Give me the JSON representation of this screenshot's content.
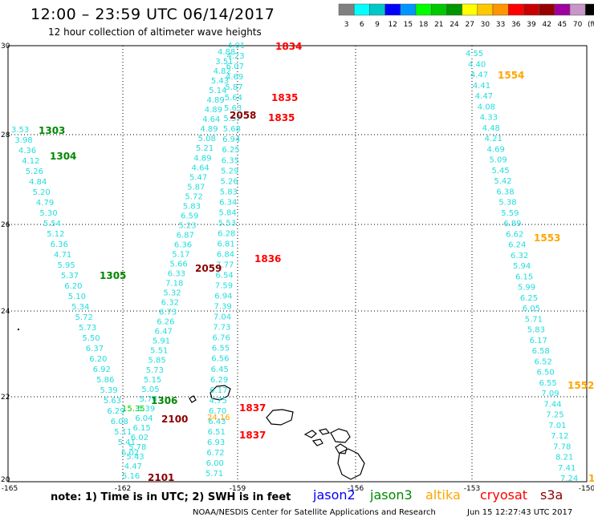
{
  "title": "12:00 – 23:59 UTC 06/14/2017",
  "subtitle": "12 hour collection of altimeter wave heights",
  "legend": {
    "colors": [
      "#808080",
      "#00ffff",
      "#00c8c8",
      "#0000ff",
      "#0096ff",
      "#00ff00",
      "#00c800",
      "#009600",
      "#ffff00",
      "#ffc800",
      "#ff9600",
      "#ff0000",
      "#c80000",
      "#960000",
      "#a000a0",
      "#c896c8",
      "#000000"
    ],
    "labels": [
      "3",
      "6",
      "9",
      "12",
      "15",
      "18",
      "21",
      "24",
      "27",
      "30",
      "33",
      "36",
      "39",
      "42",
      "45",
      "70",
      "(ft)"
    ]
  },
  "axes": {
    "x_labels": [
      "-165",
      "-162",
      "-159",
      "-156",
      "-153",
      "-150"
    ],
    "y_labels": [
      "30",
      "28",
      "26",
      "24",
      "22",
      "20"
    ]
  },
  "tracks": [
    {
      "color": "#22dddd",
      "values": [
        "3.53",
        "3.98",
        "4.36",
        "4.12",
        "5.26",
        "4.84",
        "5.20",
        "4.79",
        "5.30",
        "5.54",
        "5.12",
        "6.36",
        "4.71",
        "5.95",
        "5.37",
        "6.20",
        "5.10",
        "5.34",
        "5.72",
        "5.73",
        "5.50",
        "6.37",
        "6.20",
        "6.92",
        "5.86",
        "5.39",
        "5.63",
        "6.29",
        "6.08",
        "5.11",
        "5.41",
        "6.02"
      ]
    },
    {
      "color": "#22dddd",
      "values": [
        "4.88",
        "3.51",
        "4.82",
        "5.43",
        "5.14",
        "4.89",
        "4.89",
        "4.64",
        "4.89",
        "5.08",
        "5.21",
        "4.89",
        "4.64",
        "5.47",
        "5.87",
        "5.72",
        "5.83",
        "6.59",
        "5.23",
        "6.87",
        "6.36",
        "5.17",
        "5.66",
        "6.33",
        "7.18",
        "5.32",
        "6.32",
        "6.73",
        "6.26",
        "6.47",
        "5.91",
        "5.51",
        "5.85",
        "5.73",
        "5.15",
        "5.05",
        "5.76",
        "5.39",
        "6.04",
        "6.15",
        "6.02",
        "5.78",
        "5.43",
        "4.47",
        "5.16"
      ]
    },
    {
      "color": "#22dddd",
      "values": [
        "4.01",
        "4.23",
        "6.07",
        "4.69",
        "5.87",
        "5.64",
        "5.63",
        "5.57",
        "5.68",
        "6.94",
        "6.25",
        "6.35",
        "5.29",
        "5.26",
        "5.83",
        "6.34",
        "5.84",
        "5.53",
        "6.28",
        "6.81",
        "6.84",
        "7.77",
        "6.54",
        "7.59",
        "6.94",
        "7.39",
        "7.04",
        "7.73",
        "6.76",
        "6.55",
        "6.56",
        "6.45",
        "6.29",
        "6.17",
        "4.75",
        "6.70",
        "6.43",
        "6.51",
        "6.93",
        "6.72",
        "6.00",
        "5.71"
      ]
    },
    {
      "color": "#22dddd",
      "values": [
        "4.55",
        "4.40",
        "4.47",
        "4.41",
        "4.47",
        "4.08",
        "4.33",
        "4.48",
        "4.21",
        "4.69",
        "5.09",
        "5.45",
        "5.42",
        "6.38",
        "5.38",
        "5.59",
        "6.89",
        "6.62",
        "6.24",
        "6.32",
        "5.94",
        "6.15",
        "5.99",
        "6.25",
        "6.05",
        "5.71",
        "5.83",
        "6.17",
        "6.58",
        "6.52",
        "6.50",
        "6.55",
        "7.09",
        "7.44",
        "7.25",
        "7.01",
        "7.12",
        "7.78",
        "8.21",
        "7.41",
        "7.24"
      ]
    }
  ],
  "special_values": [
    {
      "text": "15.35",
      "color": "#00cc00"
    },
    {
      "text": "24.16",
      "color": "#ffa500"
    }
  ],
  "time_labels": [
    {
      "text": "1303",
      "color": "#008800"
    },
    {
      "text": "1304",
      "color": "#008800"
    },
    {
      "text": "1305",
      "color": "#008800"
    },
    {
      "text": "1306",
      "color": "#008800"
    },
    {
      "text": "2058",
      "color": "#8b0000"
    },
    {
      "text": "2059",
      "color": "#8b0000"
    },
    {
      "text": "2100",
      "color": "#8b0000"
    },
    {
      "text": "2101",
      "color": "#8b0000"
    },
    {
      "text": "1834",
      "color": "#ff0000"
    },
    {
      "text": "1835",
      "color": "#ff0000"
    },
    {
      "text": "1835",
      "color": "#ff0000"
    },
    {
      "text": "1836",
      "color": "#ff0000"
    },
    {
      "text": "1837",
      "color": "#ff0000"
    },
    {
      "text": "1837",
      "color": "#ff0000"
    },
    {
      "text": "1554",
      "color": "#ffa500"
    },
    {
      "text": "1553",
      "color": "#ffa500"
    },
    {
      "text": "1552",
      "color": "#ffa500"
    },
    {
      "text": "1",
      "color": "#ffa500"
    }
  ],
  "footer": {
    "note": "note: 1) Time is in UTC; 2) SWH is in feet",
    "satellites": [
      {
        "name": "jason2",
        "color": "#0000ff"
      },
      {
        "name": "jason3",
        "color": "#008800"
      },
      {
        "name": "altika",
        "color": "#ffa500"
      },
      {
        "name": "cryosat",
        "color": "#ff0000"
      },
      {
        "name": "s3a",
        "color": "#8b0000"
      }
    ],
    "credit": "NOAA/NESDIS Center for Satellite Applications and Research",
    "timestamp": "Jun 15 12:27:43 UTC 2017"
  }
}
